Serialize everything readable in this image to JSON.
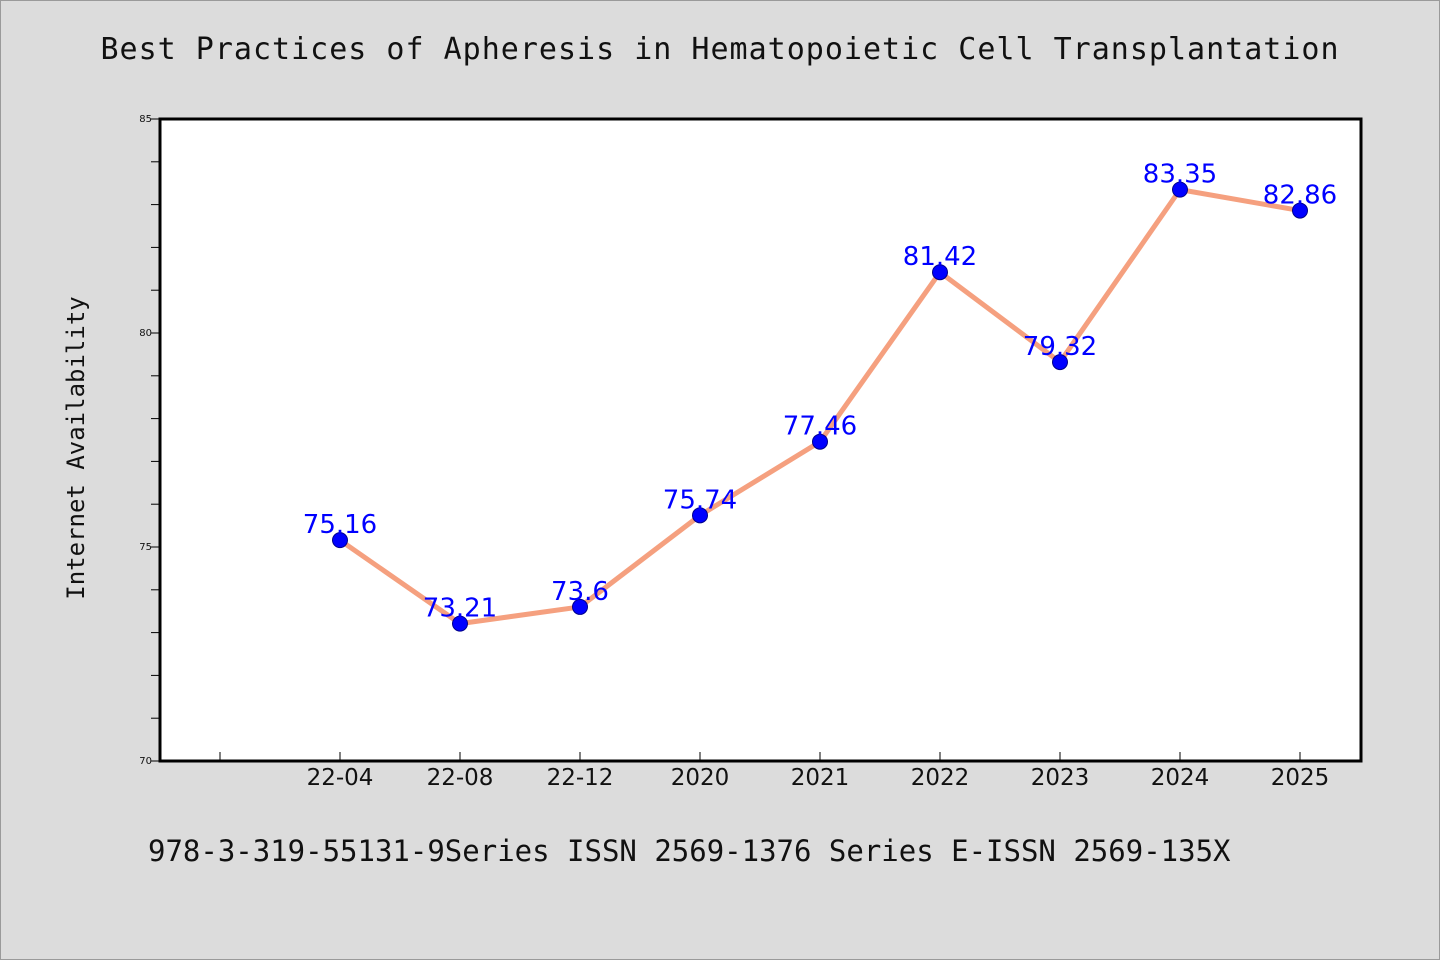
{
  "colors": {
    "background": "#dcdcdc",
    "plot_background": "#ffffff",
    "line": "#f5a07f",
    "marker": "#0000ff",
    "data_label": "#0000ff"
  },
  "footer": "978-3-319-55131-9Series ISSN 2569-1376 Series E-ISSN 2569-135X",
  "chart_data": {
    "type": "line",
    "title": "Best Practices of Apheresis in Hematopoietic Cell Transplantation",
    "xlabel": "",
    "ylabel": "Internet Availability",
    "categories": [
      "22-04",
      "22-08",
      "22-12",
      "2020",
      "2021",
      "2022",
      "2023",
      "2024",
      "2025"
    ],
    "series": [
      {
        "values": [
          75.16,
          73.21,
          73.6,
          75.74,
          77.46,
          81.42,
          79.32,
          83.35,
          82.86
        ]
      }
    ],
    "data_labels": [
      "75.16",
      "73.21",
      "73.6",
      "75.74",
      "77.46",
      "81.42",
      "79.32",
      "83.35",
      "82.86"
    ],
    "ylim": [
      70,
      85
    ],
    "yticks": [
      70,
      75,
      80,
      85
    ],
    "grid": false,
    "legend": "none",
    "marker": "circle"
  }
}
